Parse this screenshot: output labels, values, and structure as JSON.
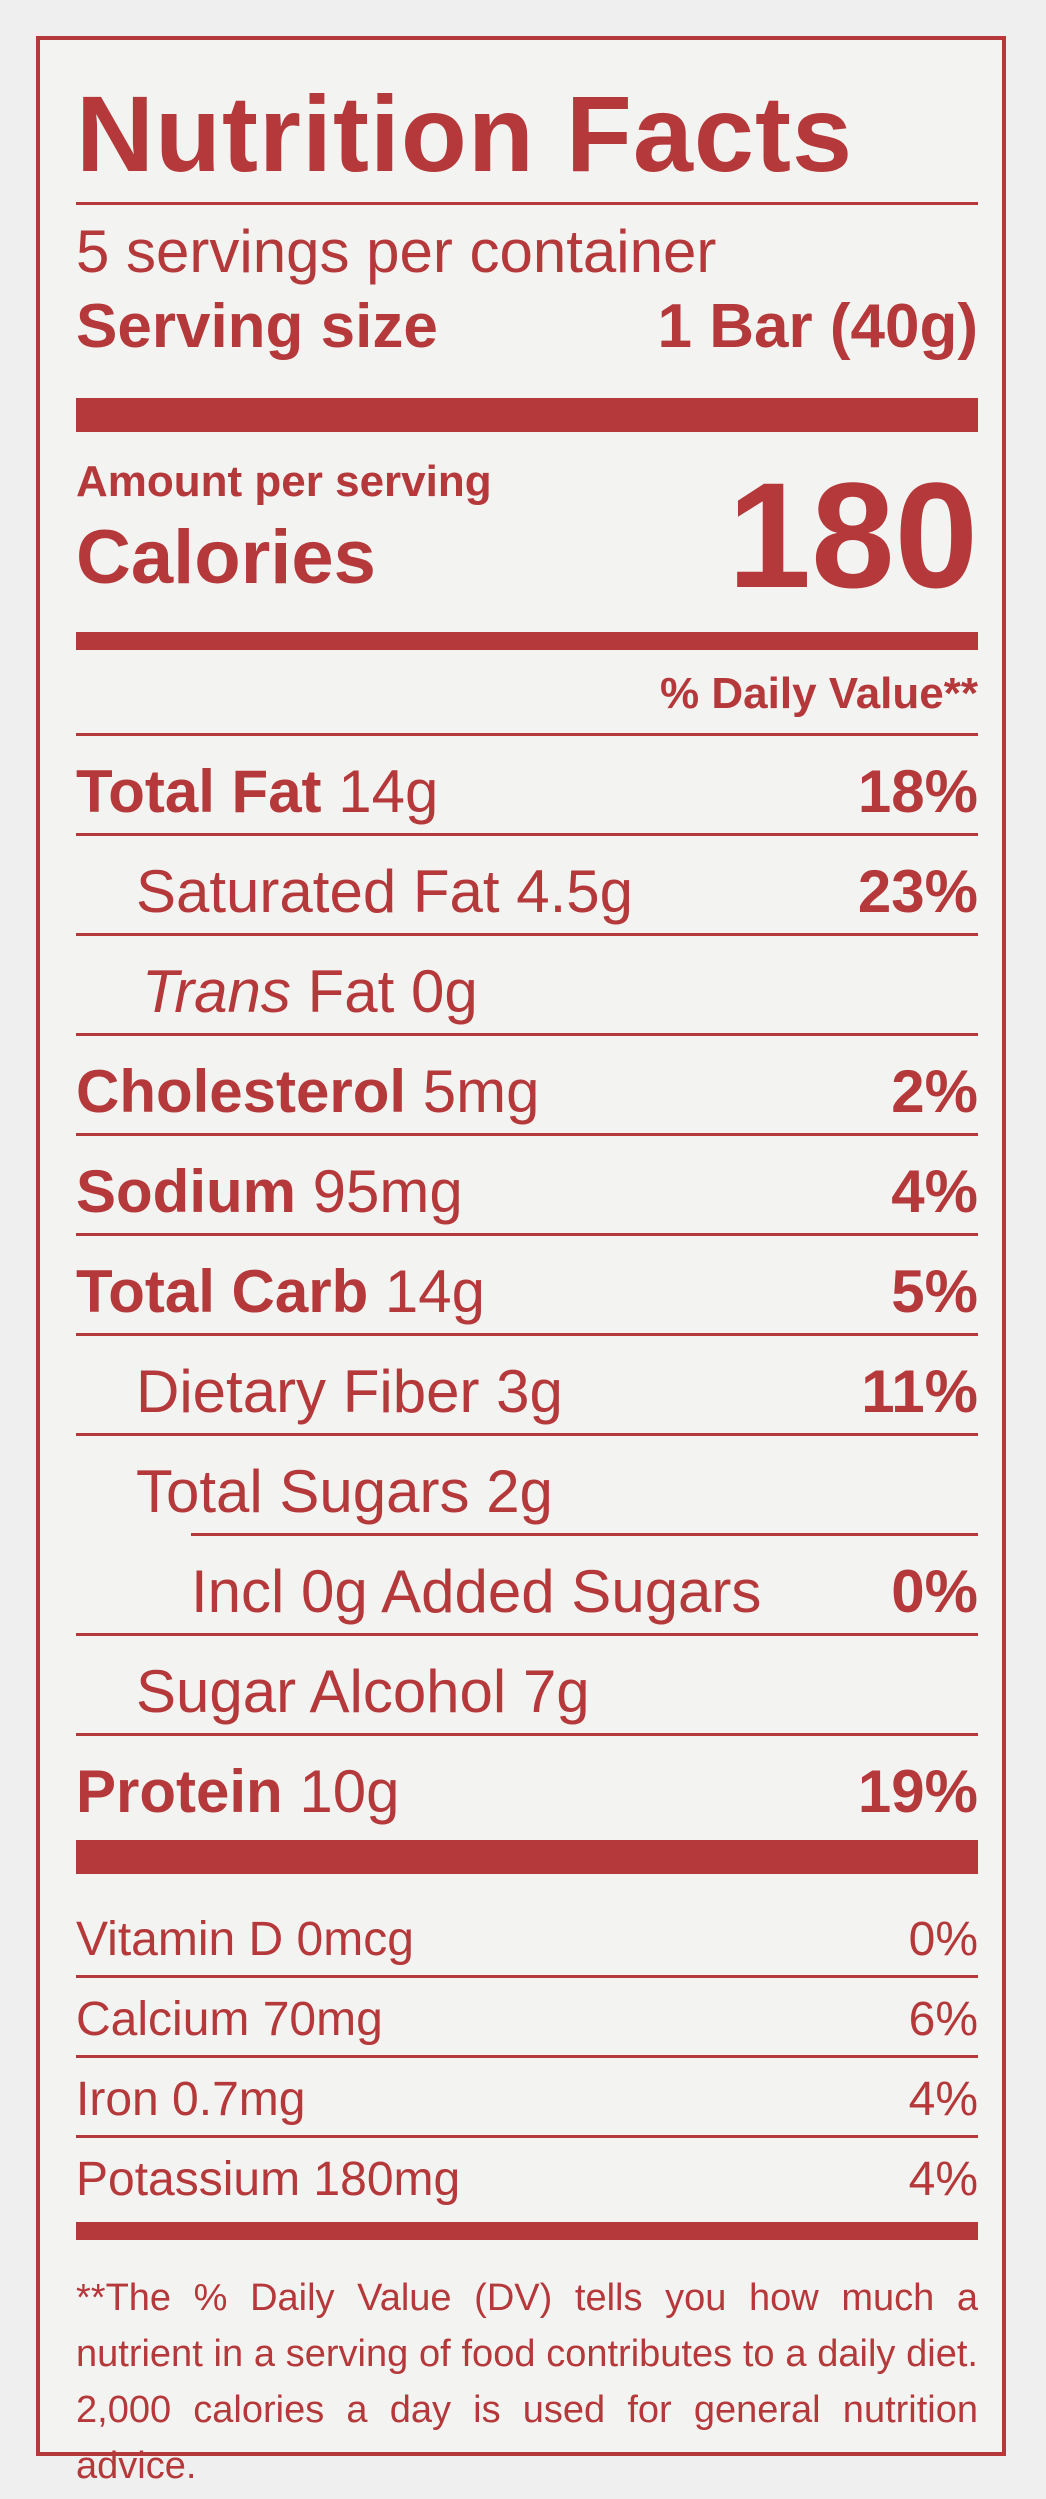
{
  "title": "Nutrition Facts",
  "servings_per_container": "5 servings per container",
  "serving_size_label": "Serving size",
  "serving_size_value": "1 Bar (40g)",
  "amount_per_serving": "Amount per serving",
  "calories_label": "Calories",
  "calories_value": "180",
  "daily_value_header": "% Daily Value**",
  "nutrients": [
    {
      "name": "Total Fat",
      "amount": "14g",
      "dv": "18%"
    },
    {
      "name": "Saturated Fat",
      "amount": "4.5g",
      "dv": "23%"
    },
    {
      "name_italic": "Trans",
      "name": "Fat",
      "amount": "0g",
      "dv": ""
    },
    {
      "name": "Cholesterol",
      "amount": "5mg",
      "dv": "2%"
    },
    {
      "name": "Sodium",
      "amount": "95mg",
      "dv": "4%"
    },
    {
      "name": "Total Carb",
      "amount": "14g",
      "dv": "5%"
    },
    {
      "name": "Dietary Fiber",
      "amount": "3g",
      "dv": "11%"
    },
    {
      "name": "Total Sugars",
      "amount": "2g",
      "dv": ""
    },
    {
      "name": "Incl 0g Added Sugars",
      "amount": "",
      "dv": "0%"
    },
    {
      "name": "Sugar Alcohol",
      "amount": "7g",
      "dv": ""
    },
    {
      "name": "Protein",
      "amount": "10g",
      "dv": "19%"
    }
  ],
  "vitamins": [
    {
      "label": "Vitamin D 0mcg",
      "dv": "0%"
    },
    {
      "label": "Calcium 70mg",
      "dv": "6%"
    },
    {
      "label": "Iron 0.7mg",
      "dv": "4%"
    },
    {
      "label": "Potassium 180mg",
      "dv": "4%"
    }
  ],
  "footnote": "**The % Daily Value (DV) tells you how much a nutrient in a serving of food contributes to a daily diet. 2,000 calories a day is used for general nutrition advice.",
  "colors": {
    "ink": "#b5383a",
    "background": "#f3f3f1"
  }
}
